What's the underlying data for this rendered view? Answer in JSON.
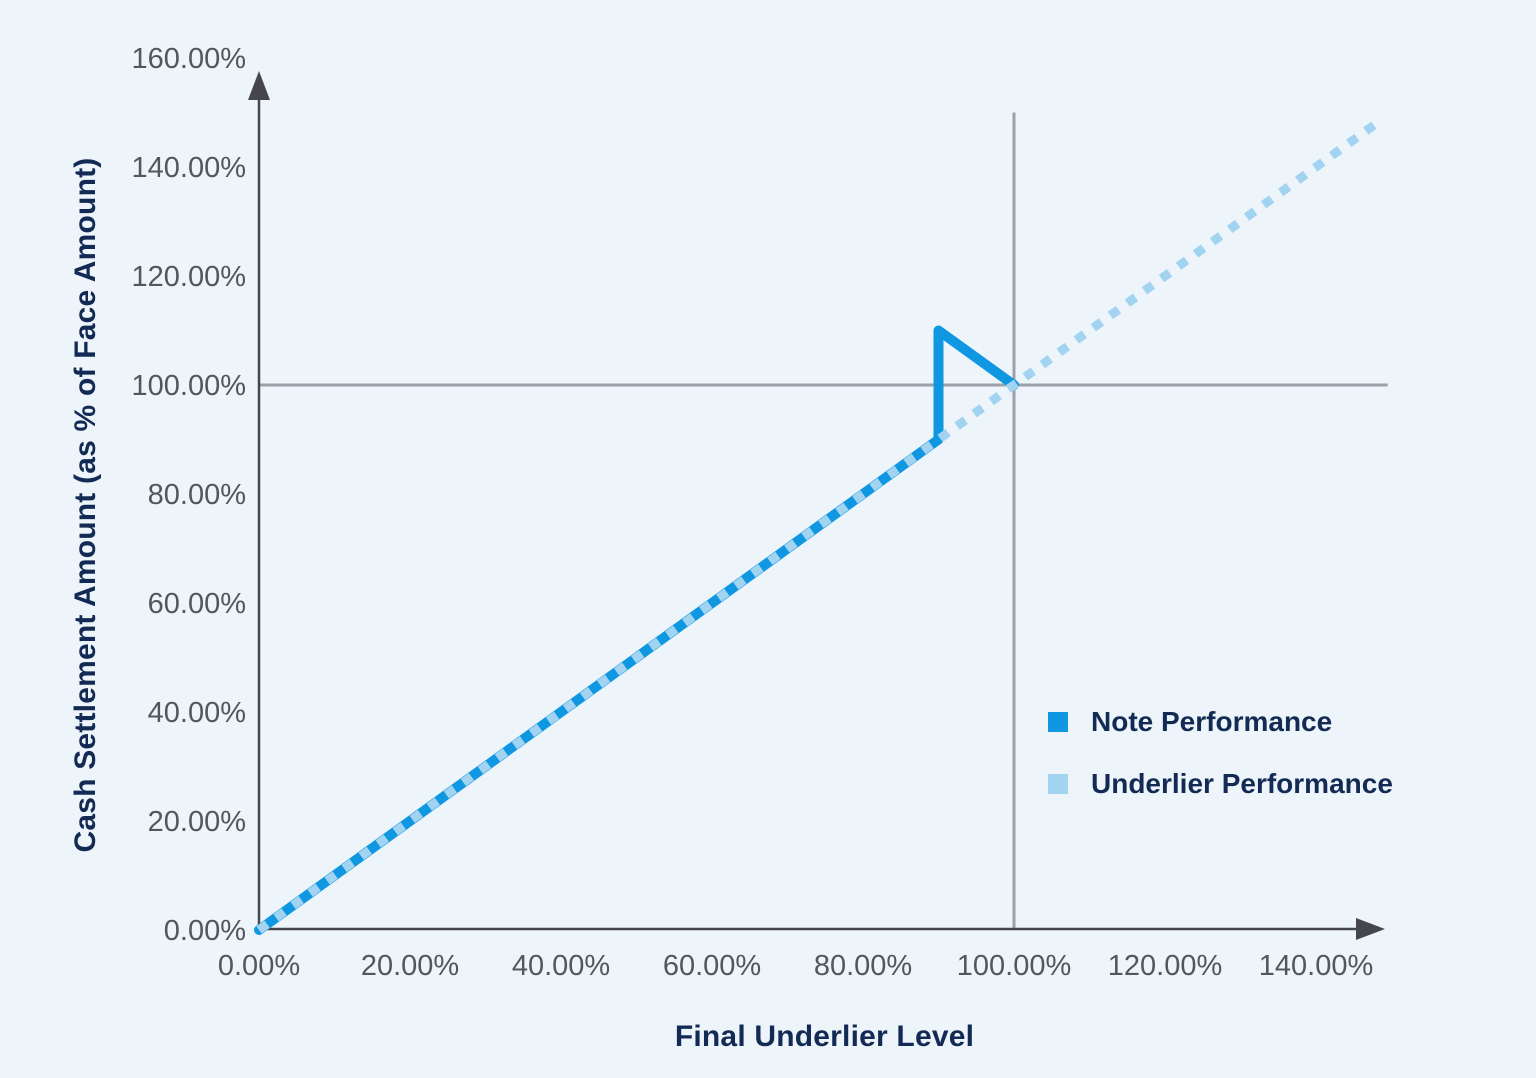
{
  "colors": {
    "background": "#EDF5FB",
    "axis": "#45464D",
    "grid": "#9BA1A8",
    "tick_label": "#55565C",
    "title_navy": "#132A54",
    "note_blue": "#1097E2",
    "underlier_light_blue": "#A2D3F1"
  },
  "chart_data": {
    "type": "line",
    "title": "",
    "xlabel": "Final Underlier Level",
    "ylabel": "Cash Settlement Amount (as % of Face Amount)",
    "x_ticks": [
      "0.00%",
      "20.00%",
      "40.00%",
      "60.00%",
      "80.00%",
      "100.00%",
      "120.00%",
      "140.00%"
    ],
    "x_tick_values": [
      0,
      20,
      40,
      60,
      80,
      100,
      120,
      140
    ],
    "y_ticks": [
      "0.00%",
      "20.00%",
      "40.00%",
      "60.00%",
      "80.00%",
      "100.00%",
      "120.00%",
      "140.00%",
      "160.00%"
    ],
    "y_tick_values": [
      0,
      20,
      40,
      60,
      80,
      100,
      120,
      140,
      160
    ],
    "xlim": [
      0,
      149
    ],
    "ylim": [
      0,
      157
    ],
    "grid": "off",
    "reference_lines": {
      "horizontal": {
        "y": 100,
        "x_range": [
          0,
          149.5
        ]
      },
      "vertical": {
        "x": 100,
        "y_range": [
          0,
          150
        ]
      }
    },
    "series": [
      {
        "name": "Note Performance",
        "slug": "note-performance",
        "style": "solid",
        "color": "#1097E2",
        "stroke_width": 10,
        "points": [
          [
            0,
            0
          ],
          [
            90,
            90
          ],
          [
            90,
            110
          ],
          [
            100,
            100
          ]
        ]
      },
      {
        "name": "Underlier Performance",
        "slug": "underlier-performance",
        "style": "dashed",
        "color": "#A2D3F1",
        "stroke_width": 9,
        "points": [
          [
            0,
            0
          ],
          [
            148.5,
            148.5
          ]
        ]
      }
    ],
    "legend": {
      "position": "right-middle",
      "entries": [
        {
          "label": "Note Performance",
          "color": "#1097E2"
        },
        {
          "label": "Underlier Performance",
          "color": "#A2D3F1"
        }
      ]
    }
  }
}
